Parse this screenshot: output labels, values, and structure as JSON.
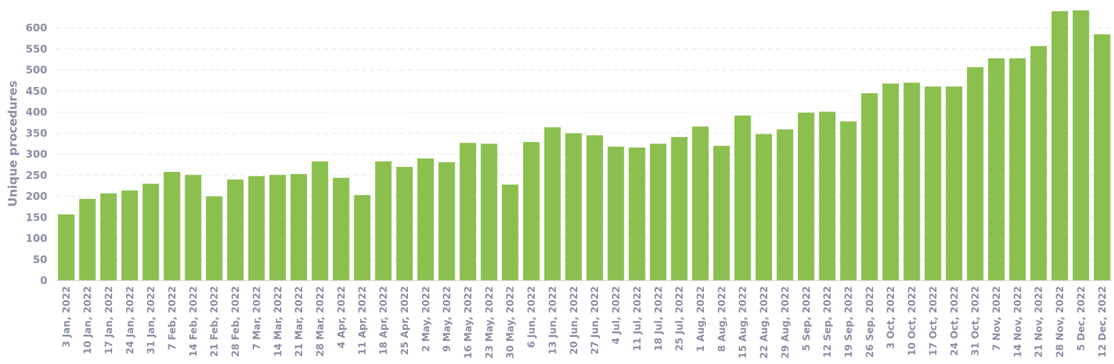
{
  "chart_data": {
    "type": "bar",
    "ylabel": "Unique procedures",
    "xlabel": "",
    "ylim": [
      0,
      650
    ],
    "yticks": [
      0,
      50,
      100,
      150,
      200,
      250,
      300,
      350,
      400,
      450,
      500,
      550,
      600
    ],
    "grid": true,
    "bar_color": "#8bc04f",
    "categories": [
      "3 Jan, 2022",
      "10 Jan, 2022",
      "17 Jan, 2022",
      "24 Jan, 2022",
      "31 Jan, 2022",
      "7 Feb, 2022",
      "14 Feb, 2022",
      "21 Feb, 2022",
      "28 Feb, 2022",
      "7 Mar, 2022",
      "14 Mar, 2022",
      "21 Mar, 2022",
      "28 Mar, 2022",
      "4 Apr, 2022",
      "11 Apr, 2022",
      "18 Apr, 2022",
      "25 Apr, 2022",
      "2 May, 2022",
      "9 May, 2022",
      "16 May, 2022",
      "23 May, 2022",
      "30 May, 2022",
      "6 Jun, 2022",
      "13 Jun, 2022",
      "20 Jun, 2022",
      "27 Jun, 2022",
      "4 Jul, 2022",
      "11 Jul, 2022",
      "18 Jul, 2022",
      "25 Jul, 2022",
      "1 Aug, 2022",
      "8 Aug, 2022",
      "15 Aug, 2022",
      "22 Aug, 2022",
      "29 Aug, 2022",
      "5 Sep, 2022",
      "12 Sep, 2022",
      "19 Sep, 2022",
      "26 Sep, 2022",
      "3 Oct, 2022",
      "10 Oct, 2022",
      "17 Oct, 2022",
      "24 Oct, 2022",
      "31 Oct, 2022",
      "7 Nov, 2022",
      "14 Nov, 2022",
      "21 Nov, 2022",
      "28 Nov, 2022",
      "5 Dec, 2022",
      "12 Dec, 2022"
    ],
    "values": [
      157,
      194,
      207,
      214,
      230,
      258,
      251,
      200,
      240,
      248,
      251,
      253,
      283,
      244,
      203,
      283,
      270,
      290,
      281,
      327,
      325,
      228,
      329,
      364,
      350,
      345,
      318,
      316,
      325,
      341,
      366,
      320,
      392,
      348,
      359,
      399,
      401,
      378,
      445,
      468,
      470,
      461,
      461,
      507,
      528,
      528,
      557,
      640,
      642,
      585
    ]
  }
}
